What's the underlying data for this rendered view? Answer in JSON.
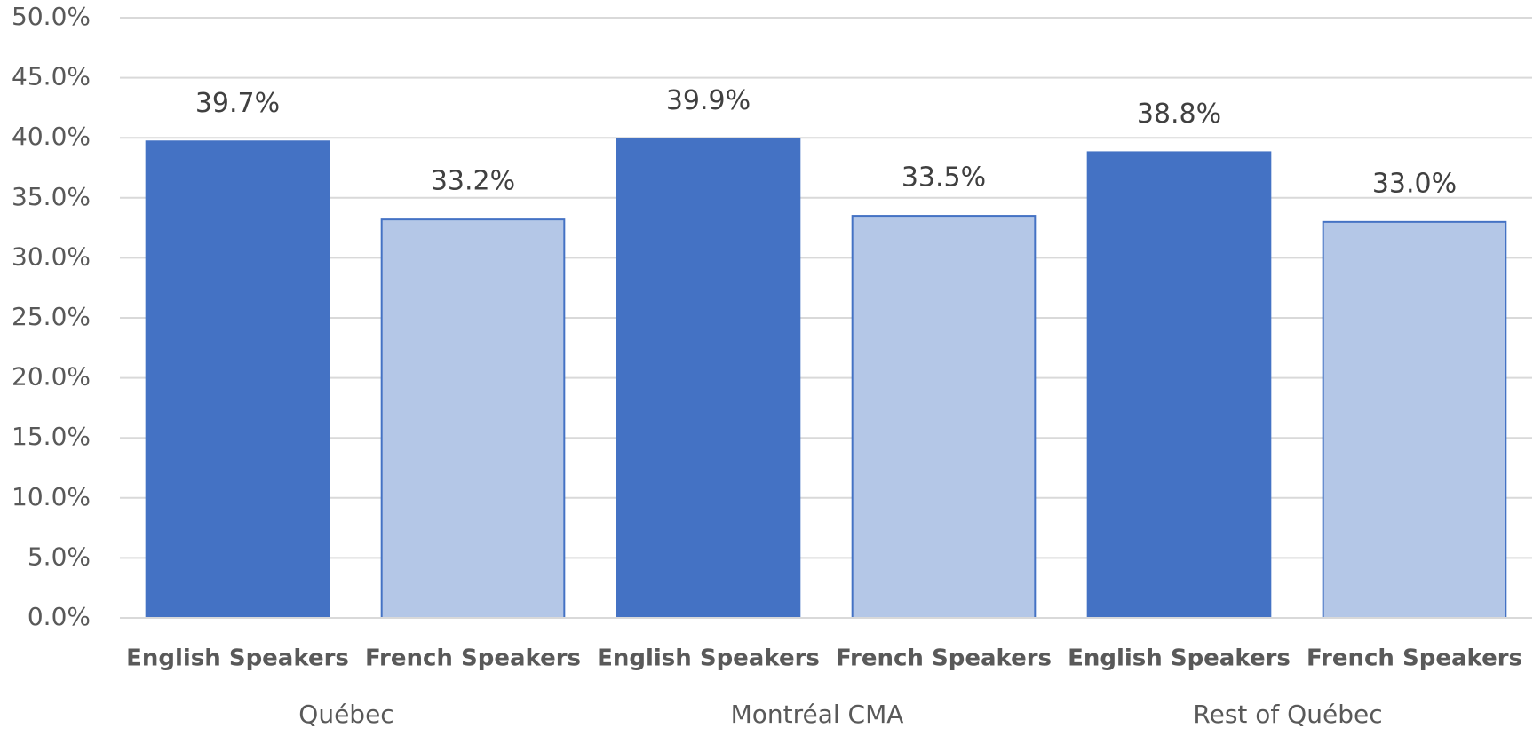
{
  "chart_data": {
    "type": "bar",
    "categories": [
      "Québec",
      "Montréal CMA",
      "Rest of Québec"
    ],
    "series": [
      {
        "name": "English Speakers",
        "color": "#4472c4",
        "values": [
          39.7,
          39.9,
          38.8
        ],
        "value_labels": [
          "39.7%",
          "39.9%",
          "38.8%"
        ]
      },
      {
        "name": "French Speakers",
        "color": "#b4c7e7",
        "values": [
          33.2,
          33.5,
          33.0
        ],
        "value_labels": [
          "33.2%",
          "33.5%",
          "33.0%"
        ]
      }
    ],
    "ylim": [
      0,
      50
    ],
    "yticks": [
      {
        "value": 0,
        "label": "0.0%"
      },
      {
        "value": 5,
        "label": "5.0%"
      },
      {
        "value": 10,
        "label": "10.0%"
      },
      {
        "value": 15,
        "label": "15.0%"
      },
      {
        "value": 20,
        "label": "20.0%"
      },
      {
        "value": 25,
        "label": "25.0%"
      },
      {
        "value": 30,
        "label": "30.0%"
      },
      {
        "value": 35,
        "label": "35.0%"
      },
      {
        "value": 40,
        "label": "40.0%"
      },
      {
        "value": 45,
        "label": "45.0%"
      },
      {
        "value": 50,
        "label": "50.0%"
      }
    ],
    "grid": true
  }
}
